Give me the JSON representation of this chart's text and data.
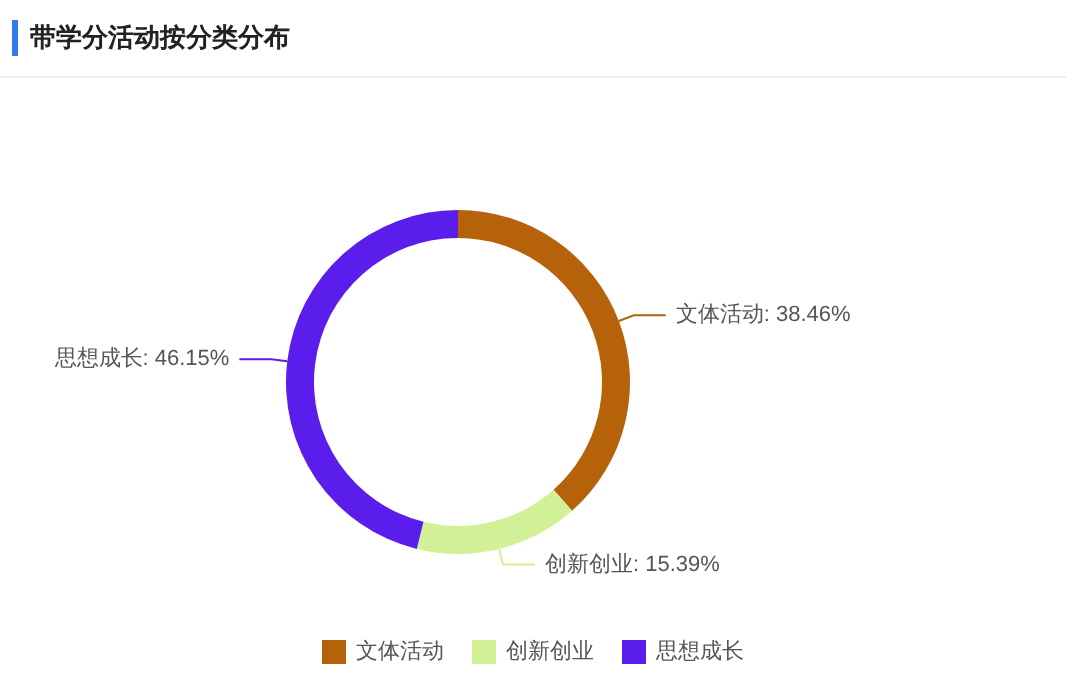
{
  "chart_data": {
    "type": "donut",
    "title": "带学分活动按分类分布",
    "categories": [
      "文体活动",
      "创新创业",
      "思想成长"
    ],
    "values": [
      38.46,
      15.39,
      46.15
    ],
    "value_labels": [
      ": 38.46%",
      ": 15.39%",
      ": 46.15%"
    ],
    "colors": [
      "#b5620a",
      "#d2f095",
      "#5b1deb"
    ],
    "legend": "bottom"
  }
}
